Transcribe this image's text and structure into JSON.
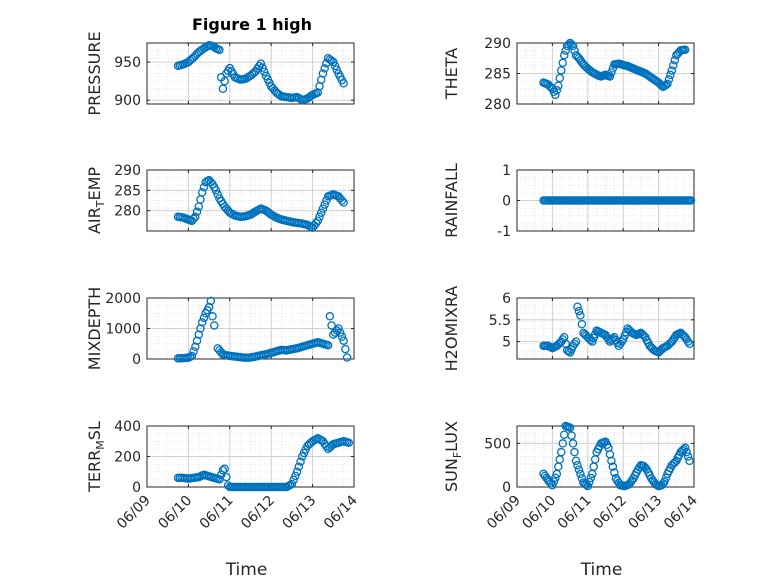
{
  "title": "Figure 1 high",
  "colors": {
    "marker": "#0072BD",
    "axis": "#262626",
    "grid": "#d0d0d0",
    "minor_grid": "#e6e6e6"
  },
  "chart_data": [
    {
      "type": "scatter",
      "ylabel": "PRESSURE",
      "xlim": [
        "06/09",
        "06/14"
      ],
      "ylim": [
        895,
        975
      ],
      "yticks": [
        "900",
        "950"
      ],
      "x": [
        "06/09 18:00",
        "06/09 21:00",
        "06/10 00:00",
        "06/10 03:00",
        "06/10 06:00",
        "06/10 09:00",
        "06/10 12:00",
        "06/10 14:00",
        "06/10 16:00",
        "06/10 18:00",
        "06/10 19:00",
        "06/10 20:00",
        "06/10 22:00",
        "06/11 00:00",
        "06/11 03:00",
        "06/11 06:00",
        "06/11 09:00",
        "06/11 12:00",
        "06/11 15:00",
        "06/11 18:00",
        "06/11 21:00",
        "06/12 00:00",
        "06/12 03:00",
        "06/12 06:00",
        "06/12 09:00",
        "06/12 12:00",
        "06/12 15:00",
        "06/12 18:00",
        "06/12 21:00",
        "06/13 00:00",
        "06/13 03:00",
        "06/13 06:00",
        "06/13 09:00",
        "06/13 12:00",
        "06/13 15:00",
        "06/13 18:00"
      ],
      "y": [
        945,
        947,
        950,
        956,
        963,
        968,
        972,
        971,
        968,
        966,
        930,
        915,
        935,
        942,
        930,
        927,
        928,
        932,
        938,
        948,
        932,
        918,
        910,
        905,
        904,
        903,
        904,
        900,
        902,
        907,
        910,
        935,
        955,
        950,
        935,
        922
      ]
    },
    {
      "type": "scatter",
      "ylabel": "THETA",
      "xlim": [
        "06/09",
        "06/14"
      ],
      "ylim": [
        280,
        290
      ],
      "yticks": [
        "280",
        "285",
        "290"
      ],
      "x": [
        "06/09 18:00",
        "06/09 21:00",
        "06/10 00:00",
        "06/10 02:00",
        "06/10 04:00",
        "06/10 06:00",
        "06/10 08:00",
        "06/10 10:00",
        "06/10 12:00",
        "06/10 14:00",
        "06/10 16:00",
        "06/10 18:00",
        "06/10 21:00",
        "06/11 00:00",
        "06/11 03:00",
        "06/11 06:00",
        "06/11 09:00",
        "06/11 12:00",
        "06/11 15:00",
        "06/11 18:00",
        "06/11 21:00",
        "06/12 00:00",
        "06/12 03:00",
        "06/12 06:00",
        "06/12 09:00",
        "06/12 12:00",
        "06/12 15:00",
        "06/12 18:00",
        "06/12 21:00",
        "06/13 00:00",
        "06/13 03:00",
        "06/13 06:00",
        "06/13 09:00",
        "06/13 12:00",
        "06/13 15:00",
        "06/13 18:00"
      ],
      "y": [
        283.5,
        283.2,
        282.5,
        281.5,
        283,
        285.5,
        288,
        289.5,
        290,
        289.5,
        288,
        287.5,
        286.5,
        285.8,
        285.2,
        284.8,
        284.5,
        284.8,
        284.5,
        286.5,
        286.6,
        286.4,
        286.2,
        285.9,
        285.6,
        285.3,
        285,
        284.5,
        284,
        283.5,
        282.8,
        283.3,
        285.5,
        288,
        288.8,
        288.9
      ]
    },
    {
      "type": "scatter",
      "ylabel": "AIR_TEMP",
      "xlim": [
        "06/09",
        "06/14"
      ],
      "ylim": [
        275,
        290
      ],
      "yticks": [
        "280",
        "285",
        "290"
      ],
      "x": [
        "06/09 18:00",
        "06/09 21:00",
        "06/10 00:00",
        "06/10 02:00",
        "06/10 04:00",
        "06/10 06:00",
        "06/10 08:00",
        "06/10 10:00",
        "06/10 12:00",
        "06/10 14:00",
        "06/10 16:00",
        "06/10 18:00",
        "06/10 21:00",
        "06/11 00:00",
        "06/11 03:00",
        "06/11 06:00",
        "06/11 09:00",
        "06/11 12:00",
        "06/11 15:00",
        "06/11 18:00",
        "06/11 21:00",
        "06/12 00:00",
        "06/12 03:00",
        "06/12 06:00",
        "06/12 09:00",
        "06/12 12:00",
        "06/12 15:00",
        "06/12 18:00",
        "06/12 21:00",
        "06/13 00:00",
        "06/13 03:00",
        "06/13 06:00",
        "06/13 09:00",
        "06/13 12:00",
        "06/13 15:00",
        "06/13 18:00"
      ],
      "y": [
        278.5,
        278.3,
        277.8,
        277.5,
        278.5,
        281,
        284.5,
        287,
        287.5,
        286.5,
        285,
        283,
        281,
        279.5,
        278.8,
        278.5,
        278.6,
        279,
        279.8,
        280.5,
        280,
        279,
        278.3,
        277.8,
        277.5,
        277.2,
        277,
        276.8,
        276.5,
        275.8,
        277.5,
        280.5,
        283.5,
        284,
        283.5,
        282
      ]
    },
    {
      "type": "scatter",
      "ylabel": "RAINFALL",
      "xlim": [
        "06/09",
        "06/14"
      ],
      "ylim": [
        -1,
        1
      ],
      "yticks": [
        "-1",
        "0",
        "1"
      ],
      "x_range": [
        "06/09 18:00",
        "06/13 22:00"
      ],
      "y_constant": 0
    },
    {
      "type": "scatter",
      "ylabel": "MIXDEPTH",
      "xlim": [
        "06/09",
        "06/14"
      ],
      "ylim": [
        0,
        2000
      ],
      "yticks": [
        "0",
        "1000",
        "2000"
      ],
      "x": [
        "06/09 18:00",
        "06/09 21:00",
        "06/10 00:00",
        "06/10 02:00",
        "06/10 04:00",
        "06/10 06:00",
        "06/10 08:00",
        "06/10 10:00",
        "06/10 12:00",
        "06/10 13:00",
        "06/10 14:00",
        "06/10 15:00",
        "06/10 17:00",
        "06/10 20:00",
        "06/11 00:00",
        "06/11 03:00",
        "06/11 06:00",
        "06/11 09:00",
        "06/11 12:00",
        "06/11 15:00",
        "06/11 18:00",
        "06/11 21:00",
        "06/12 00:00",
        "06/12 03:00",
        "06/12 06:00",
        "06/12 09:00",
        "06/12 12:00",
        "06/12 15:00",
        "06/12 18:00",
        "06/12 21:00",
        "06/13 00:00",
        "06/13 03:00",
        "06/13 06:00",
        "06/13 09:00",
        "06/13 10:00",
        "06/13 12:00",
        "06/13 15:00",
        "06/13 18:00",
        "06/13 20:00"
      ],
      "y": [
        20,
        30,
        40,
        100,
        400,
        800,
        1200,
        1500,
        1700,
        1900,
        1400,
        1100,
        350,
        150,
        100,
        80,
        60,
        40,
        50,
        80,
        120,
        150,
        200,
        250,
        300,
        280,
        320,
        350,
        400,
        450,
        500,
        550,
        500,
        450,
        1400,
        800,
        1000,
        600,
        50
      ]
    },
    {
      "type": "scatter",
      "ylabel": "H2OMIXRA",
      "xlim": [
        "06/09",
        "06/14"
      ],
      "ylim": [
        4.6,
        6
      ],
      "yticks": [
        "5",
        "5.5",
        "6"
      ],
      "x": [
        "06/09 18:00",
        "06/09 21:00",
        "06/10 00:00",
        "06/10 03:00",
        "06/10 06:00",
        "06/10 08:00",
        "06/10 10:00",
        "06/10 12:00",
        "06/10 14:00",
        "06/10 16:00",
        "06/10 17:00",
        "06/10 19:00",
        "06/10 21:00",
        "06/11 00:00",
        "06/11 03:00",
        "06/11 06:00",
        "06/11 09:00",
        "06/11 12:00",
        "06/11 15:00",
        "06/11 18:00",
        "06/11 21:00",
        "06/12 00:00",
        "06/12 03:00",
        "06/12 06:00",
        "06/12 09:00",
        "06/12 12:00",
        "06/12 15:00",
        "06/12 18:00",
        "06/12 21:00",
        "06/13 00:00",
        "06/13 03:00",
        "06/13 06:00",
        "06/13 09:00",
        "06/13 12:00",
        "06/13 15:00",
        "06/13 18:00",
        "06/13 21:00"
      ],
      "y": [
        4.9,
        4.9,
        4.85,
        4.9,
        5.0,
        5.1,
        4.8,
        4.75,
        4.9,
        5.0,
        5.8,
        5.6,
        5.2,
        5.1,
        5.0,
        5.25,
        5.2,
        5.15,
        5.0,
        5.1,
        4.9,
        5.05,
        5.3,
        5.2,
        5.15,
        5.2,
        5.1,
        4.9,
        4.8,
        4.75,
        4.85,
        4.9,
        5.0,
        5.15,
        5.2,
        5.1,
        4.95
      ]
    },
    {
      "type": "scatter",
      "ylabel": "TERR_MSL",
      "xlim": [
        "06/09",
        "06/14"
      ],
      "ylim": [
        0,
        400
      ],
      "yticks": [
        "0",
        "200",
        "400"
      ],
      "x": [
        "06/09 18:00",
        "06/09 21:00",
        "06/10 00:00",
        "06/10 03:00",
        "06/10 06:00",
        "06/10 09:00",
        "06/10 12:00",
        "06/10 15:00",
        "06/10 18:00",
        "06/10 20:00",
        "06/10 21:00",
        "06/10 23:00",
        "06/11 00:00",
        "06/11 03:00",
        "06/11 06:00",
        "06/11 09:00",
        "06/11 12:00",
        "06/11 15:00",
        "06/11 18:00",
        "06/11 21:00",
        "06/12 00:00",
        "06/12 03:00",
        "06/12 06:00",
        "06/12 09:00",
        "06/12 12:00",
        "06/12 15:00",
        "06/12 18:00",
        "06/12 21:00",
        "06/13 00:00",
        "06/13 03:00",
        "06/13 06:00",
        "06/13 09:00",
        "06/13 12:00",
        "06/13 15:00",
        "06/13 18:00",
        "06/13 21:00"
      ],
      "y": [
        60,
        60,
        55,
        60,
        65,
        80,
        70,
        60,
        50,
        110,
        120,
        10,
        0,
        0,
        0,
        0,
        0,
        0,
        0,
        0,
        0,
        0,
        0,
        0,
        20,
        100,
        200,
        270,
        300,
        320,
        300,
        250,
        280,
        290,
        300,
        290
      ]
    },
    {
      "type": "scatter",
      "ylabel": "SUN_FLUX",
      "xlim": [
        "06/09",
        "06/14"
      ],
      "ylim": [
        0,
        700
      ],
      "yticks": [
        "0",
        "500"
      ],
      "x": [
        "06/09 18:00",
        "06/09 21:00",
        "06/10 00:00",
        "06/10 03:00",
        "06/10 06:00",
        "06/10 09:00",
        "06/10 12:00",
        "06/10 14:00",
        "06/10 16:00",
        "06/10 18:00",
        "06/10 21:00",
        "06/11 00:00",
        "06/11 03:00",
        "06/11 06:00",
        "06/11 09:00",
        "06/11 12:00",
        "06/11 14:00",
        "06/11 16:00",
        "06/11 19:00",
        "06/11 22:00",
        "06/12 01:00",
        "06/12 04:00",
        "06/12 07:00",
        "06/12 10:00",
        "06/12 12:00",
        "06/12 14:00",
        "06/12 16:00",
        "06/12 19:00",
        "06/12 22:00",
        "06/13 00:00",
        "06/13 02:00",
        "06/13 04:00",
        "06/13 06:00",
        "06/13 09:00",
        "06/13 12:00",
        "06/13 15:00",
        "06/13 18:00",
        "06/13 21:00"
      ],
      "y": [
        150,
        80,
        20,
        150,
        400,
        700,
        680,
        500,
        300,
        200,
        50,
        10,
        150,
        400,
        500,
        520,
        450,
        300,
        100,
        20,
        10,
        30,
        100,
        200,
        250,
        240,
        200,
        100,
        30,
        10,
        20,
        60,
        150,
        250,
        300,
        400,
        450,
        300
      ]
    }
  ],
  "xtick_labels": [
    "06/09",
    "06/10",
    "06/11",
    "06/12",
    "06/13",
    "06/14"
  ],
  "xlabel": "Time"
}
